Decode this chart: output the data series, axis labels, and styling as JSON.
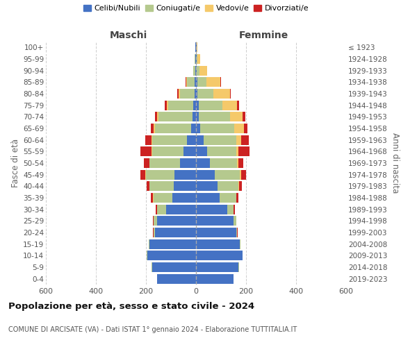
{
  "age_groups": [
    "0-4",
    "5-9",
    "10-14",
    "15-19",
    "20-24",
    "25-29",
    "30-34",
    "35-39",
    "40-44",
    "45-49",
    "50-54",
    "55-59",
    "60-64",
    "65-69",
    "70-74",
    "75-79",
    "80-84",
    "85-89",
    "90-94",
    "95-99",
    "100+"
  ],
  "birth_years": [
    "2019-2023",
    "2014-2018",
    "2009-2013",
    "2004-2008",
    "1999-2003",
    "1994-1998",
    "1989-1993",
    "1984-1988",
    "1979-1983",
    "1974-1978",
    "1969-1973",
    "1964-1968",
    "1959-1963",
    "1954-1958",
    "1949-1953",
    "1944-1948",
    "1939-1943",
    "1934-1938",
    "1929-1933",
    "1924-1928",
    "≤ 1923"
  ],
  "males": {
    "celibi": [
      155,
      175,
      195,
      185,
      165,
      155,
      120,
      95,
      90,
      85,
      65,
      50,
      35,
      20,
      15,
      10,
      5,
      5,
      2,
      2,
      2
    ],
    "coniugati": [
      1,
      2,
      2,
      3,
      5,
      15,
      35,
      75,
      95,
      115,
      120,
      125,
      140,
      145,
      135,
      100,
      60,
      30,
      8,
      3,
      2
    ],
    "vedovi": [
      0,
      0,
      0,
      0,
      0,
      0,
      0,
      1,
      1,
      2,
      2,
      2,
      3,
      5,
      5,
      8,
      5,
      5,
      2,
      0,
      0
    ],
    "divorziati": [
      0,
      0,
      0,
      0,
      1,
      2,
      5,
      10,
      10,
      20,
      20,
      45,
      25,
      10,
      8,
      8,
      5,
      2,
      0,
      0,
      0
    ]
  },
  "females": {
    "nubili": [
      150,
      170,
      185,
      175,
      160,
      150,
      125,
      95,
      85,
      75,
      55,
      45,
      30,
      18,
      12,
      10,
      5,
      5,
      3,
      2,
      2
    ],
    "coniugate": [
      1,
      2,
      2,
      3,
      5,
      10,
      25,
      65,
      85,
      100,
      110,
      115,
      130,
      135,
      125,
      95,
      65,
      38,
      12,
      4,
      2
    ],
    "vedove": [
      0,
      0,
      0,
      0,
      0,
      0,
      1,
      2,
      3,
      5,
      5,
      10,
      20,
      40,
      50,
      60,
      65,
      55,
      30,
      10,
      2
    ],
    "divorziate": [
      0,
      0,
      0,
      0,
      1,
      2,
      4,
      8,
      10,
      20,
      20,
      45,
      30,
      12,
      10,
      8,
      5,
      2,
      0,
      0,
      0
    ]
  },
  "colors": {
    "celibi": "#4472C4",
    "coniugati": "#b5c98e",
    "vedovi": "#f5c96a",
    "divorziati": "#cc2222"
  },
  "xlim": 600,
  "title": "Popolazione per età, sesso e stato civile - 2024",
  "subtitle": "COMUNE DI ARCISATE (VA) - Dati ISTAT 1° gennaio 2024 - Elaborazione TUTTITALIA.IT",
  "xlabel_left": "Maschi",
  "xlabel_right": "Femmine",
  "ylabel_left": "Fasce di età",
  "ylabel_right": "Anni di nascita",
  "bg_color": "#ffffff",
  "grid_color": "#cccccc"
}
